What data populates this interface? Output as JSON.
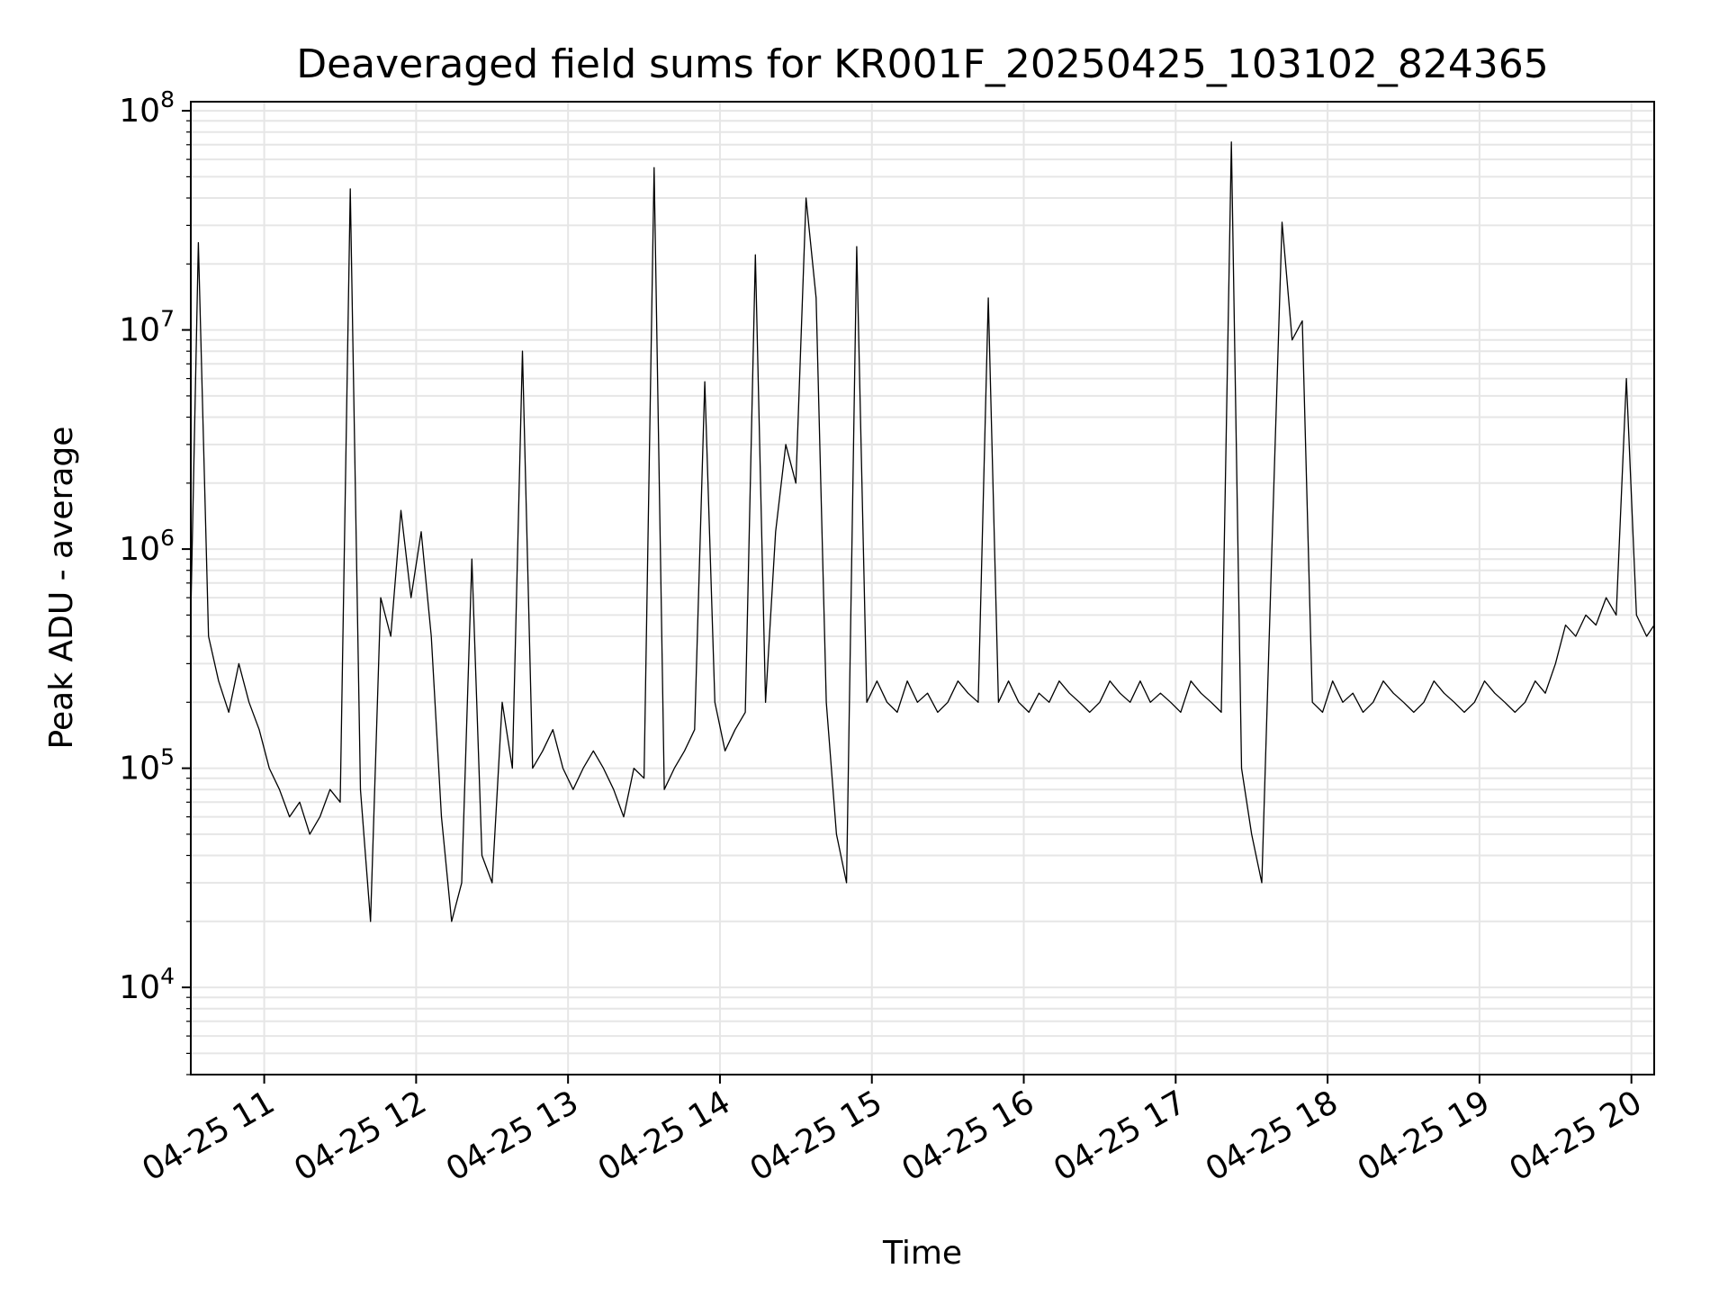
{
  "chart_data": {
    "type": "line",
    "title": "Deaveraged field sums for KR001F_20250425_103102_824365",
    "xlabel": "Time",
    "ylabel": "Peak ADU - average",
    "yscale": "log",
    "ylim": [
      4000,
      110000000
    ],
    "xlim": [
      "2025-04-25 10:31",
      "2025-04-25 20:09"
    ],
    "grid": true,
    "line_color": "#000000",
    "grid_color": "#e6e6e6",
    "x_ticks": [
      {
        "value": "2025-04-25 11:00",
        "label": "04-25 11"
      },
      {
        "value": "2025-04-25 12:00",
        "label": "04-25 12"
      },
      {
        "value": "2025-04-25 13:00",
        "label": "04-25 13"
      },
      {
        "value": "2025-04-25 14:00",
        "label": "04-25 14"
      },
      {
        "value": "2025-04-25 15:00",
        "label": "04-25 15"
      },
      {
        "value": "2025-04-25 16:00",
        "label": "04-25 16"
      },
      {
        "value": "2025-04-25 17:00",
        "label": "04-25 17"
      },
      {
        "value": "2025-04-25 18:00",
        "label": "04-25 18"
      },
      {
        "value": "2025-04-25 19:00",
        "label": "04-25 19"
      },
      {
        "value": "2025-04-25 20:00",
        "label": "04-25 20"
      }
    ],
    "y_ticks": [
      {
        "value": 10000,
        "base": "10",
        "exp": "4"
      },
      {
        "value": 100000,
        "base": "10",
        "exp": "5"
      },
      {
        "value": 1000000,
        "base": "10",
        "exp": "6"
      },
      {
        "value": 10000000,
        "base": "10",
        "exp": "7"
      },
      {
        "value": 100000000,
        "base": "10",
        "exp": "8"
      }
    ],
    "series": [
      {
        "x": [
          "2025-04-25 10:31",
          "2025-04-25 10:34",
          "2025-04-25 10:38",
          "2025-04-25 10:42",
          "2025-04-25 10:46",
          "2025-04-25 10:50",
          "2025-04-25 10:54",
          "2025-04-25 10:58",
          "2025-04-25 11:02",
          "2025-04-25 11:06",
          "2025-04-25 11:10",
          "2025-04-25 11:14",
          "2025-04-25 11:18",
          "2025-04-25 11:22",
          "2025-04-25 11:26",
          "2025-04-25 11:30",
          "2025-04-25 11:34",
          "2025-04-25 11:38",
          "2025-04-25 11:42",
          "2025-04-25 11:46",
          "2025-04-25 11:50",
          "2025-04-25 11:54",
          "2025-04-25 11:58",
          "2025-04-25 12:02",
          "2025-04-25 12:06",
          "2025-04-25 12:10",
          "2025-04-25 12:14",
          "2025-04-25 12:18",
          "2025-04-25 12:22",
          "2025-04-25 12:26",
          "2025-04-25 12:30",
          "2025-04-25 12:34",
          "2025-04-25 12:38",
          "2025-04-25 12:42",
          "2025-04-25 12:46",
          "2025-04-25 12:50",
          "2025-04-25 12:54",
          "2025-04-25 12:58",
          "2025-04-25 13:02",
          "2025-04-25 13:06",
          "2025-04-25 13:10",
          "2025-04-25 13:14",
          "2025-04-25 13:18",
          "2025-04-25 13:22",
          "2025-04-25 13:26",
          "2025-04-25 13:30",
          "2025-04-25 13:34",
          "2025-04-25 13:38",
          "2025-04-25 13:42",
          "2025-04-25 13:46",
          "2025-04-25 13:50",
          "2025-04-25 13:54",
          "2025-04-25 13:58",
          "2025-04-25 14:02",
          "2025-04-25 14:06",
          "2025-04-25 14:10",
          "2025-04-25 14:14",
          "2025-04-25 14:18",
          "2025-04-25 14:22",
          "2025-04-25 14:26",
          "2025-04-25 14:30",
          "2025-04-25 14:34",
          "2025-04-25 14:38",
          "2025-04-25 14:42",
          "2025-04-25 14:46",
          "2025-04-25 14:50",
          "2025-04-25 14:54",
          "2025-04-25 14:58",
          "2025-04-25 15:02",
          "2025-04-25 15:06",
          "2025-04-25 15:10",
          "2025-04-25 15:14",
          "2025-04-25 15:18",
          "2025-04-25 15:22",
          "2025-04-25 15:26",
          "2025-04-25 15:30",
          "2025-04-25 15:34",
          "2025-04-25 15:38",
          "2025-04-25 15:42",
          "2025-04-25 15:46",
          "2025-04-25 15:50",
          "2025-04-25 15:54",
          "2025-04-25 15:58",
          "2025-04-25 16:02",
          "2025-04-25 16:06",
          "2025-04-25 16:10",
          "2025-04-25 16:14",
          "2025-04-25 16:18",
          "2025-04-25 16:22",
          "2025-04-25 16:26",
          "2025-04-25 16:30",
          "2025-04-25 16:34",
          "2025-04-25 16:38",
          "2025-04-25 16:42",
          "2025-04-25 16:46",
          "2025-04-25 16:50",
          "2025-04-25 16:54",
          "2025-04-25 16:58",
          "2025-04-25 17:02",
          "2025-04-25 17:06",
          "2025-04-25 17:10",
          "2025-04-25 17:14",
          "2025-04-25 17:18",
          "2025-04-25 17:22",
          "2025-04-25 17:26",
          "2025-04-25 17:30",
          "2025-04-25 17:34",
          "2025-04-25 17:38",
          "2025-04-25 17:42",
          "2025-04-25 17:46",
          "2025-04-25 17:50",
          "2025-04-25 17:54",
          "2025-04-25 17:58",
          "2025-04-25 18:02",
          "2025-04-25 18:06",
          "2025-04-25 18:10",
          "2025-04-25 18:14",
          "2025-04-25 18:18",
          "2025-04-25 18:22",
          "2025-04-25 18:26",
          "2025-04-25 18:30",
          "2025-04-25 18:34",
          "2025-04-25 18:38",
          "2025-04-25 18:42",
          "2025-04-25 18:46",
          "2025-04-25 18:50",
          "2025-04-25 18:54",
          "2025-04-25 18:58",
          "2025-04-25 19:02",
          "2025-04-25 19:06",
          "2025-04-25 19:10",
          "2025-04-25 19:14",
          "2025-04-25 19:18",
          "2025-04-25 19:22",
          "2025-04-25 19:26",
          "2025-04-25 19:30",
          "2025-04-25 19:34",
          "2025-04-25 19:38",
          "2025-04-25 19:42",
          "2025-04-25 19:46",
          "2025-04-25 19:50",
          "2025-04-25 19:54",
          "2025-04-25 19:58",
          "2025-04-25 20:02",
          "2025-04-25 20:06",
          "2025-04-25 20:09"
        ],
        "y": [
          500000,
          25000000,
          400000,
          250000,
          180000,
          300000,
          200000,
          150000,
          100000,
          80000,
          60000,
          70000,
          50000,
          60000,
          80000,
          70000,
          44000000,
          80000,
          20000,
          600000,
          400000,
          1500000,
          600000,
          1200000,
          400000,
          60000,
          20000,
          30000,
          900000,
          40000,
          30000,
          200000,
          100000,
          8000000,
          100000,
          120000,
          150000,
          100000,
          80000,
          100000,
          120000,
          100000,
          80000,
          60000,
          100000,
          90000,
          55000000,
          80000,
          100000,
          120000,
          150000,
          5800000,
          200000,
          120000,
          150000,
          180000,
          22000000,
          200000,
          1200000,
          3000000,
          2000000,
          40000000,
          14000000,
          200000,
          50000,
          30000,
          24000000,
          200000,
          250000,
          200000,
          180000,
          250000,
          200000,
          220000,
          180000,
          200000,
          250000,
          220000,
          200000,
          14000000,
          200000,
          250000,
          200000,
          180000,
          220000,
          200000,
          250000,
          220000,
          200000,
          180000,
          200000,
          250000,
          220000,
          200000,
          250000,
          200000,
          220000,
          200000,
          180000,
          250000,
          220000,
          200000,
          180000,
          72000000,
          100000,
          50000,
          30000,
          1000000,
          31000000,
          9000000,
          11000000,
          200000,
          180000,
          250000,
          200000,
          220000,
          180000,
          200000,
          250000,
          220000,
          200000,
          180000,
          200000,
          250000,
          220000,
          200000,
          180000,
          200000,
          250000,
          220000,
          200000,
          180000,
          200000,
          250000,
          220000,
          300000,
          450000,
          400000,
          500000,
          450000,
          600000,
          500000,
          6000000,
          500000,
          400000,
          450000
        ]
      }
    ]
  }
}
